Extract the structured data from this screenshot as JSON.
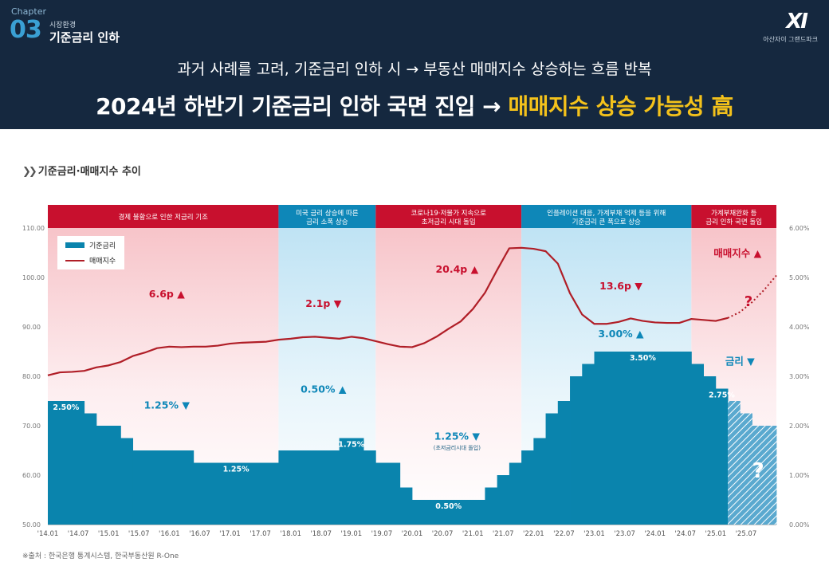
{
  "header": {
    "chapter_label": "Chapter",
    "chapter_number": "03",
    "chapter_sub": "시장환경",
    "chapter_title": "기준금리 인하",
    "brand_logo": "XI",
    "brand_name": "아산자이 그랜드파크",
    "headline_1": "과거 사례를 고려, 기준금리 인하 시 → 부동산 매매지수 상승하는 흐름 반복",
    "headline_2_main": "2024년 하반기 기준금리 인하 국면 진입 → ",
    "headline_2_highlight": "매매지수 상승 가능성 高"
  },
  "section_title": "기준금리·매매지수 추이",
  "source": "※출처 : 한국은행 통계시스템, 한국부동산원 R-One",
  "colors": {
    "navy": "#15283f",
    "rate_bar": "#0a84ad",
    "index_line": "#b01e27",
    "phase_red": "#c8102e",
    "phase_blue": "#0e87b8",
    "highlight": "#f4c21b"
  },
  "chart_data": {
    "type": "bar+line",
    "x_ticks": [
      "'14.01",
      "'14.07",
      "'15.01",
      "'15.07",
      "'16.01",
      "'16.07",
      "'17.01",
      "'17.07",
      "'18.01",
      "'18.07",
      "'19.01",
      "'19.07",
      "'20.01",
      "'20.07",
      "'21.01",
      "'21.07",
      "'22.01",
      "'22.07",
      "'23.01",
      "'23.07",
      "'24.01",
      "'24.07",
      "'25.01",
      "'25.07"
    ],
    "left_axis": {
      "ticks": [
        "110.00",
        "100.00",
        "90.00",
        "80.00",
        "70.00",
        "60.00",
        "50.00"
      ],
      "ylim": [
        50,
        110
      ]
    },
    "right_axis": {
      "ticks": [
        "6.00%",
        "5.00%",
        "4.00%",
        "3.00%",
        "2.00%",
        "1.00%",
        "0.00%"
      ],
      "ylim": [
        0,
        6
      ]
    },
    "legend": {
      "rate": "기준금리",
      "index": "매매지수"
    },
    "phases": [
      {
        "label": "경제 불황으로 인한 저금리 기조",
        "start": 0,
        "end": 19,
        "tone": "red"
      },
      {
        "label": "미국 금리 상승에 따른\n금리 소폭 상승",
        "start": 19,
        "end": 27,
        "tone": "blue"
      },
      {
        "label": "코로나19·저물가 지속으로\n초저금리 시대 돌입",
        "start": 27,
        "end": 39,
        "tone": "red"
      },
      {
        "label": "인플레이션 대응, 가계부채 억제 등을 위해\n기준금리 큰 폭으로 상승",
        "start": 39,
        "end": 53,
        "tone": "blue"
      },
      {
        "label": "가계부채완화 등\n금리 인하 국면 돌입",
        "start": 53,
        "end": 60,
        "tone": "red"
      }
    ],
    "rate_series": {
      "name": "기준금리",
      "unit": "%",
      "steps": [
        {
          "start": 0,
          "end": 3,
          "value": 2.5
        },
        {
          "start": 3,
          "end": 4,
          "value": 2.25
        },
        {
          "start": 4,
          "end": 6,
          "value": 2.0
        },
        {
          "start": 6,
          "end": 7,
          "value": 1.75
        },
        {
          "start": 7,
          "end": 12,
          "value": 1.5
        },
        {
          "start": 12,
          "end": 19,
          "value": 1.25
        },
        {
          "start": 19,
          "end": 24,
          "value": 1.5
        },
        {
          "start": 24,
          "end": 26,
          "value": 1.75
        },
        {
          "start": 26,
          "end": 27,
          "value": 1.5
        },
        {
          "start": 27,
          "end": 29,
          "value": 1.25
        },
        {
          "start": 29,
          "end": 30,
          "value": 0.75
        },
        {
          "start": 30,
          "end": 36,
          "value": 0.5
        },
        {
          "start": 36,
          "end": 37,
          "value": 0.75
        },
        {
          "start": 37,
          "end": 38,
          "value": 1.0
        },
        {
          "start": 38,
          "end": 39,
          "value": 1.25
        },
        {
          "start": 39,
          "end": 40,
          "value": 1.5
        },
        {
          "start": 40,
          "end": 41,
          "value": 1.75
        },
        {
          "start": 41,
          "end": 42,
          "value": 2.25
        },
        {
          "start": 42,
          "end": 43,
          "value": 2.5
        },
        {
          "start": 43,
          "end": 44,
          "value": 3.0
        },
        {
          "start": 44,
          "end": 45,
          "value": 3.25
        },
        {
          "start": 45,
          "end": 53,
          "value": 3.5
        },
        {
          "start": 53,
          "end": 54,
          "value": 3.25
        },
        {
          "start": 54,
          "end": 55,
          "value": 3.0
        },
        {
          "start": 55,
          "end": 56,
          "value": 2.75
        },
        {
          "start": 56,
          "end": 57,
          "value": 2.5
        },
        {
          "start": 57,
          "end": 58,
          "value": 2.25
        },
        {
          "start": 58,
          "end": 60,
          "value": 2.0
        }
      ],
      "forecast_from": 56
    },
    "index_series": {
      "name": "매매지수",
      "points": [
        [
          0,
          80.2
        ],
        [
          1,
          80.8
        ],
        [
          2,
          80.9
        ],
        [
          3,
          81.1
        ],
        [
          4,
          81.8
        ],
        [
          5,
          82.2
        ],
        [
          6,
          82.9
        ],
        [
          7,
          84.1
        ],
        [
          8,
          84.8
        ],
        [
          9,
          85.7
        ],
        [
          10,
          86.0
        ],
        [
          11,
          85.9
        ],
        [
          12,
          86.0
        ],
        [
          13,
          86.0
        ],
        [
          14,
          86.2
        ],
        [
          15,
          86.6
        ],
        [
          16,
          86.8
        ],
        [
          17,
          86.9
        ],
        [
          18,
          87.0
        ],
        [
          19,
          87.4
        ],
        [
          20,
          87.6
        ],
        [
          21,
          87.9
        ],
        [
          22,
          88.0
        ],
        [
          23,
          87.8
        ],
        [
          24,
          87.6
        ],
        [
          25,
          88.0
        ],
        [
          26,
          87.7
        ],
        [
          27,
          87.1
        ],
        [
          28,
          86.5
        ],
        [
          29,
          86.0
        ],
        [
          30,
          85.9
        ],
        [
          31,
          86.7
        ],
        [
          32,
          88.0
        ],
        [
          33,
          89.6
        ],
        [
          34,
          91.1
        ],
        [
          35,
          93.6
        ],
        [
          36,
          96.9
        ],
        [
          37,
          101.5
        ],
        [
          38,
          105.9
        ],
        [
          39,
          106.0
        ],
        [
          40,
          105.8
        ],
        [
          41,
          105.3
        ],
        [
          42,
          102.8
        ],
        [
          43,
          96.8
        ],
        [
          44,
          92.5
        ],
        [
          45,
          90.6
        ],
        [
          46,
          90.6
        ],
        [
          47,
          91.0
        ],
        [
          48,
          91.7
        ],
        [
          49,
          91.2
        ],
        [
          50,
          90.9
        ],
        [
          51,
          90.8
        ],
        [
          52,
          90.8
        ],
        [
          53,
          91.6
        ],
        [
          54,
          91.4
        ],
        [
          55,
          91.2
        ],
        [
          56,
          91.8
        ]
      ],
      "forecast": [
        [
          56,
          91.8
        ],
        [
          57,
          93.0
        ],
        [
          58,
          95.0
        ],
        [
          59,
          97.5
        ],
        [
          60,
          100.4
        ]
      ]
    },
    "annotations": [
      {
        "text": "6.6p ▲",
        "series": "index",
        "x": 9.8,
        "y": 96.0
      },
      {
        "text": "2.1p ▼",
        "series": "index",
        "x": 22.7,
        "y": 94.0
      },
      {
        "text": "20.4p ▲",
        "series": "index",
        "x": 33.7,
        "y": 101.0
      },
      {
        "text": "13.6p ▼",
        "series": "index",
        "x": 47.2,
        "y": 97.6
      },
      {
        "text": "매매지수 ▲",
        "series": "index",
        "x": 56.8,
        "y": 104.2
      },
      {
        "text": "1.25% ▼",
        "series": "rate",
        "x": 9.8,
        "y": 2.35
      },
      {
        "text": "0.50% ▲",
        "series": "rate",
        "x": 22.7,
        "y": 2.67
      },
      {
        "text": "1.25% ▼",
        "series": "rate",
        "x": 33.7,
        "y": 1.72
      },
      {
        "text": "(초저금리시대 돌입)",
        "series": "rate",
        "x": 33.7,
        "y": 1.52
      },
      {
        "text": "3.00% ▲",
        "series": "rate",
        "x": 47.2,
        "y": 3.79
      },
      {
        "text": "금리 ▼",
        "series": "rate",
        "x": 57.0,
        "y": 3.23
      }
    ],
    "bar_labels": [
      {
        "text": "2.50%",
        "x": 1.5,
        "y": 2.32,
        "tone": "white"
      },
      {
        "text": "1.25%",
        "x": 15.5,
        "y": 1.07,
        "tone": "white"
      },
      {
        "text": "1.75%",
        "x": 25.0,
        "y": 1.57,
        "tone": "white"
      },
      {
        "text": "0.50%",
        "x": 33.0,
        "y": 0.32,
        "tone": "white"
      },
      {
        "text": "3.50%",
        "x": 49.0,
        "y": 3.32,
        "tone": "white"
      },
      {
        "text": "2.75%",
        "x": 55.5,
        "y": 2.57,
        "tone": "white"
      }
    ],
    "question_marks": [
      {
        "series": "index",
        "x": 57.7,
        "y": 94.2
      },
      {
        "series": "rate",
        "x": 58.5,
        "y": 0.95
      }
    ]
  }
}
